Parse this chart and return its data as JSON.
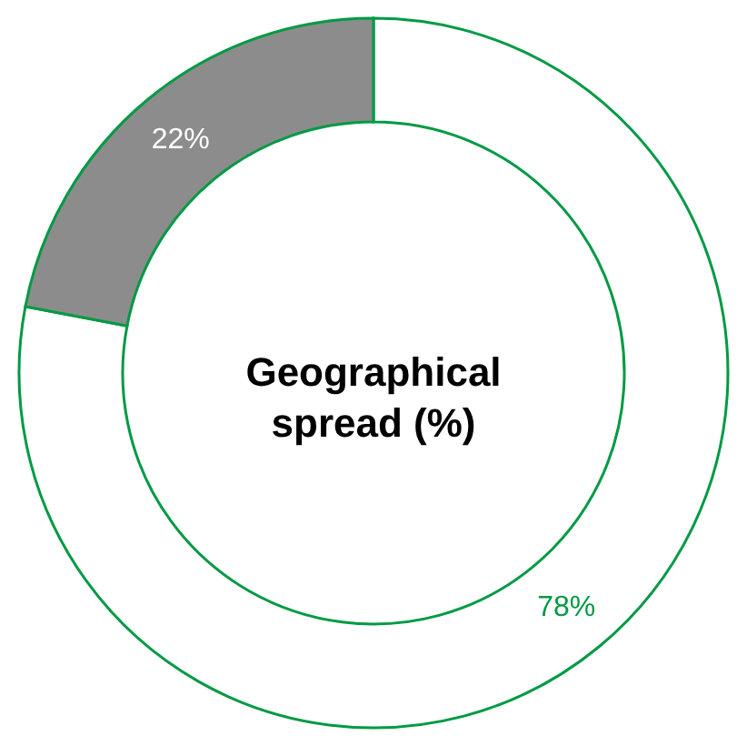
{
  "chart_data": {
    "type": "donut",
    "title": "Geographical spread (%)",
    "categories": [
      null,
      null
    ],
    "values": [
      78,
      22
    ],
    "colors": [
      "#ffffff",
      "#8c8c8c"
    ],
    "value_labels": [
      "78%",
      "22%"
    ]
  }
}
